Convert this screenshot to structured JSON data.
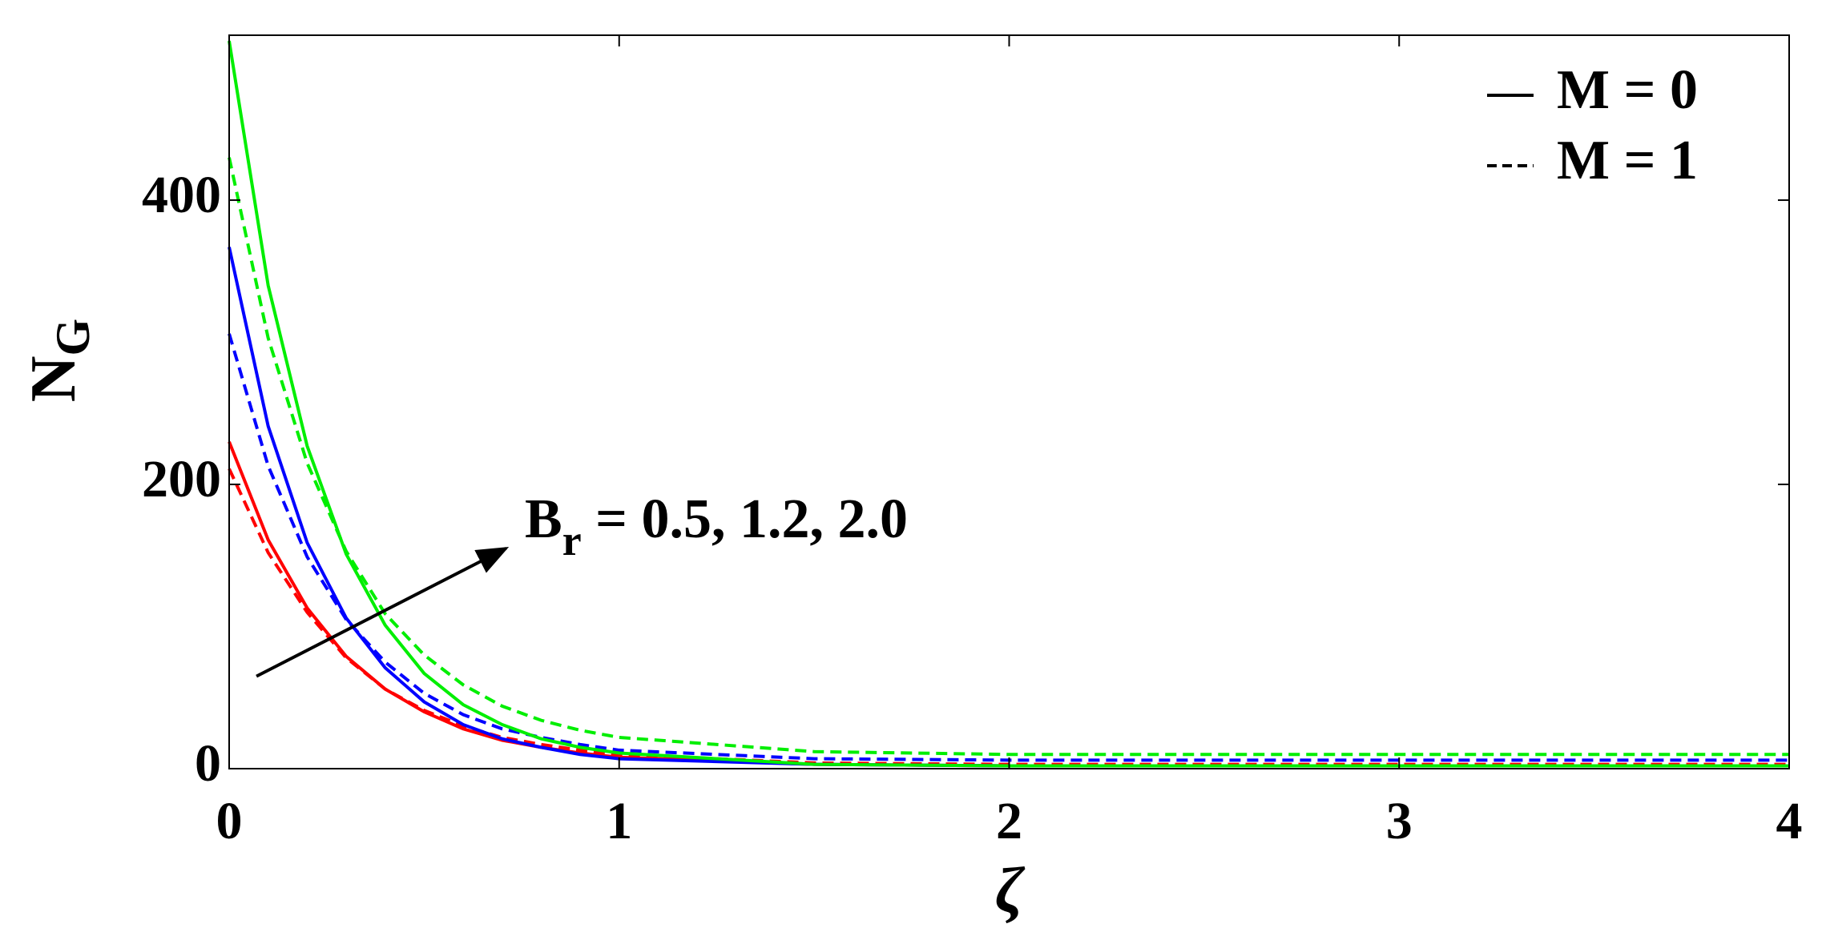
{
  "chart_data": {
    "type": "line",
    "x_label": "ζ",
    "y_label": {
      "base": "N",
      "sub": "G"
    },
    "annotation": {
      "base": "B",
      "sub": "r",
      "text": " = 0.5, 1.2, 2.0",
      "arrow_from": [
        0.07,
        65
      ],
      "arrow_to": [
        0.71,
        155
      ]
    },
    "x": [
      0,
      0.1,
      0.2,
      0.3,
      0.4,
      0.5,
      0.6,
      0.7,
      0.8,
      0.9,
      1.0,
      1.5,
      2,
      3,
      4
    ],
    "series": [
      {
        "color": "#ff0000",
        "dashed": false,
        "values": [
          230,
          161,
          113,
          79,
          56,
          40,
          28,
          20,
          15,
          11,
          8,
          3,
          2,
          2,
          2
        ]
      },
      {
        "color": "#ff0000",
        "dashed": true,
        "values": [
          211,
          152,
          110,
          78,
          56,
          41,
          30,
          22,
          17,
          13,
          10,
          4,
          3,
          3,
          3
        ]
      },
      {
        "color": "#0000ff",
        "dashed": false,
        "values": [
          367,
          241,
          159,
          106,
          71,
          47,
          31,
          21,
          15,
          10,
          7,
          3,
          2,
          2,
          2
        ]
      },
      {
        "color": "#0000ff",
        "dashed": true,
        "values": [
          306,
          213,
          149,
          105,
          75,
          53,
          38,
          28,
          22,
          17,
          13,
          7,
          6,
          6,
          6
        ]
      },
      {
        "color": "#00ee00",
        "dashed": false,
        "values": [
          512,
          340,
          227,
          151,
          101,
          67,
          45,
          31,
          21,
          15,
          11,
          3,
          2,
          2,
          2
        ]
      },
      {
        "color": "#00ee00",
        "dashed": true,
        "values": [
          430,
          303,
          215,
          153,
          109,
          80,
          59,
          44,
          34,
          27,
          22,
          12,
          10,
          10,
          10
        ]
      }
    ],
    "legend": [
      {
        "label": "M = 0",
        "dashed": false
      },
      {
        "label": "M = 1",
        "dashed": true
      }
    ],
    "xlim": [
      0,
      4
    ],
    "xticks": [
      0,
      1,
      2,
      3,
      4
    ],
    "ylim": [
      0,
      516
    ],
    "yticks": [
      0,
      200,
      400
    ]
  }
}
